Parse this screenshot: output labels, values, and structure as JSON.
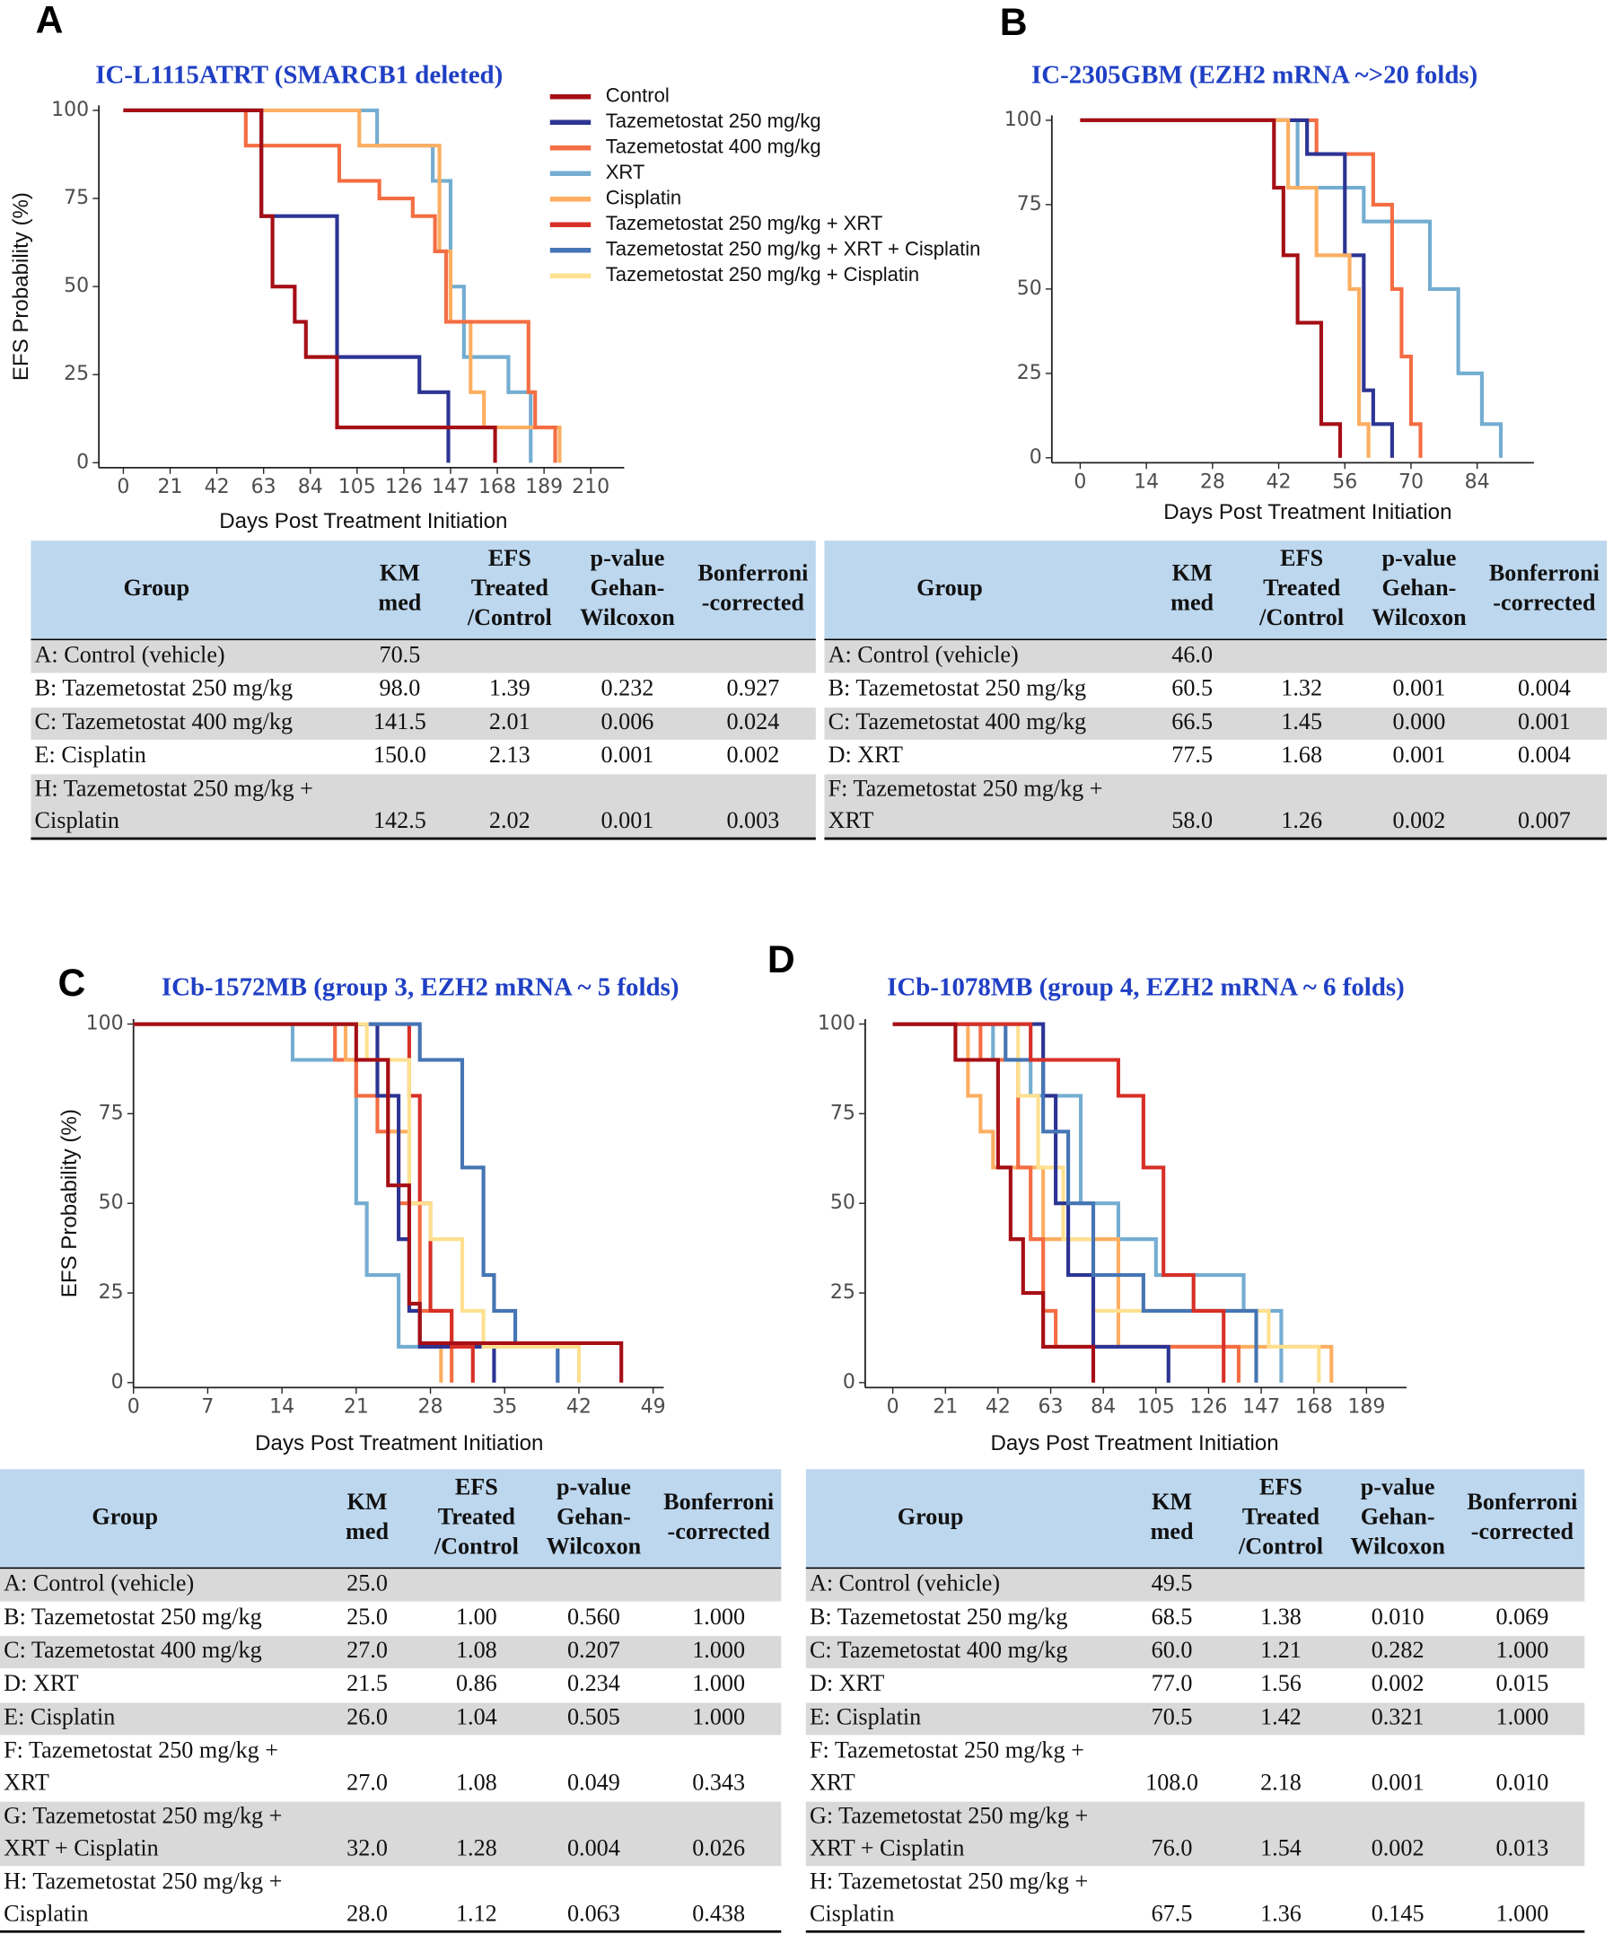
{
  "chart_data": [
    {
      "panel": "A",
      "type": "line",
      "step": true,
      "title": "IC-L1115ATRT (SMARCB1 deleted)",
      "xlabel": "Days Post Treatment Initiation",
      "ylabel": "EFS Probability (%)",
      "xlim": [
        -11,
        225
      ],
      "ylim": [
        0,
        100
      ],
      "xticks": [
        0,
        21,
        42,
        63,
        84,
        105,
        126,
        147,
        168,
        189,
        210
      ],
      "yticks": [
        0,
        25,
        50,
        75,
        100
      ],
      "legend": {
        "position": "right",
        "entries": [
          {
            "name": "Control",
            "color": "#a50f15"
          },
          {
            "name": "Tazemetostat 250 mg/kg",
            "color": "#2c3494"
          },
          {
            "name": "Tazemetostat 400 mg/kg",
            "color": "#f46d43"
          },
          {
            "name": "XRT",
            "color": "#74add1"
          },
          {
            "name": "Cisplatin",
            "color": "#fdae61"
          },
          {
            "name": "Tazemetostat 250 mg/kg + XRT",
            "color": "#d73027"
          },
          {
            "name": "Tazemetostat 250 mg/kg + XRT + Cisplatin",
            "color": "#4575b4"
          },
          {
            "name": "Tazemetostat 250 mg/kg + Cisplatin",
            "color": "#fee090"
          }
        ]
      },
      "series": [
        {
          "color": "#74add1",
          "x": [
            0,
            114,
            139,
            147,
            153,
            173,
            183
          ],
          "values": [
            100,
            90,
            80,
            50,
            30,
            20,
            0
          ]
        },
        {
          "color": "#fdae61",
          "x": [
            0,
            106,
            142,
            147,
            156,
            162,
            196
          ],
          "values": [
            100,
            90,
            60,
            40,
            20,
            10,
            0
          ]
        },
        {
          "color": "#f46d43",
          "x": [
            0,
            55,
            97,
            115,
            130,
            140,
            145,
            182,
            185,
            194
          ],
          "values": [
            100,
            90,
            80,
            75,
            70,
            60,
            40,
            20,
            10,
            0
          ]
        },
        {
          "color": "#2c3494",
          "x": [
            0,
            62,
            96,
            133,
            146
          ],
          "values": [
            100,
            70,
            30,
            20,
            0
          ]
        },
        {
          "color": "#a50f15",
          "x": [
            0,
            62,
            67,
            77,
            82,
            96,
            167
          ],
          "values": [
            100,
            70,
            50,
            40,
            30,
            10,
            0
          ]
        }
      ]
    },
    {
      "panel": "B",
      "type": "line",
      "step": true,
      "title": "IC-2305GBM (EZH2 mRNA ~>20 folds)",
      "xlabel": "Days Post Treatment Initiation",
      "xlim": [
        -6,
        96
      ],
      "ylim": [
        0,
        100
      ],
      "xticks": [
        0,
        14,
        28,
        42,
        56,
        70,
        84
      ],
      "yticks": [
        0,
        25,
        50,
        75,
        100
      ],
      "series": [
        {
          "color": "#74add1",
          "x": [
            0,
            46,
            60,
            74,
            80,
            85,
            89
          ],
          "values": [
            100,
            80,
            70,
            50,
            25,
            10,
            0
          ]
        },
        {
          "color": "#f46d43",
          "x": [
            0,
            50,
            62,
            66,
            68,
            70,
            72
          ],
          "values": [
            100,
            90,
            75,
            50,
            30,
            10,
            0
          ]
        },
        {
          "color": "#2c3494",
          "x": [
            0,
            48,
            56,
            60,
            62,
            66
          ],
          "values": [
            100,
            90,
            60,
            20,
            10,
            0
          ]
        },
        {
          "color": "#fdae61",
          "x": [
            0,
            44,
            50,
            57,
            59,
            61
          ],
          "values": [
            100,
            80,
            60,
            50,
            10,
            0
          ]
        },
        {
          "color": "#a50f15",
          "x": [
            0,
            41,
            43,
            46,
            51,
            55
          ],
          "values": [
            100,
            80,
            60,
            40,
            10,
            0
          ]
        }
      ]
    },
    {
      "panel": "C",
      "type": "line",
      "step": true,
      "title": "ICb-1572MB (group 3, EZH2 mRNA ~ 5 folds)",
      "xlabel": "Days Post Treatment Initiation",
      "ylabel": "EFS Probability (%)",
      "xlim": [
        0,
        50
      ],
      "ylim": [
        0,
        100
      ],
      "xticks": [
        0,
        7,
        14,
        21,
        28,
        35,
        42,
        49
      ],
      "yticks": [
        0,
        25,
        50,
        75,
        100
      ],
      "series": [
        {
          "color": "#74add1",
          "x": [
            0,
            15,
            21,
            22,
            25,
            40
          ],
          "values": [
            100,
            90,
            50,
            30,
            10,
            0
          ]
        },
        {
          "color": "#f46d43",
          "x": [
            0,
            19,
            21,
            23,
            25,
            27,
            30
          ],
          "values": [
            100,
            90,
            80,
            70,
            50,
            20,
            0
          ]
        },
        {
          "color": "#fdae61",
          "x": [
            0,
            20,
            24,
            26,
            27,
            29
          ],
          "values": [
            100,
            90,
            70,
            20,
            10,
            0
          ]
        },
        {
          "color": "#2c3494",
          "x": [
            0,
            23,
            25,
            26,
            27,
            34
          ],
          "values": [
            100,
            80,
            40,
            20,
            10,
            0
          ]
        },
        {
          "color": "#d73027",
          "x": [
            0,
            26,
            27,
            28,
            30,
            32
          ],
          "values": [
            100,
            80,
            50,
            20,
            10,
            0
          ]
        },
        {
          "color": "#4575b4",
          "x": [
            0,
            27,
            31,
            33,
            34,
            36,
            40
          ],
          "values": [
            100,
            90,
            60,
            30,
            20,
            10,
            0
          ]
        },
        {
          "color": "#fee090",
          "x": [
            0,
            22,
            26,
            28,
            31,
            33,
            42
          ],
          "values": [
            100,
            90,
            50,
            40,
            20,
            10,
            0
          ]
        },
        {
          "color": "#a50f15",
          "x": [
            0,
            21,
            24,
            26,
            27,
            46
          ],
          "values": [
            100,
            90,
            55,
            22,
            11,
            0
          ]
        }
      ]
    },
    {
      "panel": "D",
      "type": "line",
      "step": true,
      "title": "ICb-1078MB (group 4, EZH2 mRNA ~ 6 folds)",
      "xlabel": "Days Post Treatment Initiation",
      "xlim": [
        -11,
        205
      ],
      "ylim": [
        0,
        100
      ],
      "xticks": [
        0,
        21,
        42,
        63,
        84,
        105,
        126,
        147,
        168,
        189
      ],
      "yticks": [
        0,
        25,
        50,
        75,
        100
      ],
      "series": [
        {
          "color": "#74add1",
          "x": [
            0,
            40,
            55,
            75,
            90,
            105,
            140,
            155
          ],
          "values": [
            100,
            90,
            80,
            50,
            40,
            30,
            20,
            0
          ]
        },
        {
          "color": "#fdae61",
          "x": [
            0,
            30,
            35,
            40,
            60,
            90,
            175
          ],
          "values": [
            100,
            80,
            70,
            60,
            40,
            10,
            0
          ]
        },
        {
          "color": "#f46d43",
          "x": [
            0,
            35,
            50,
            55,
            60,
            65,
            138
          ],
          "values": [
            100,
            90,
            60,
            40,
            20,
            10,
            0
          ]
        },
        {
          "color": "#fee090",
          "x": [
            0,
            50,
            58,
            68,
            80,
            150,
            170
          ],
          "values": [
            100,
            80,
            60,
            40,
            20,
            10,
            0
          ]
        },
        {
          "color": "#2c3494",
          "x": [
            0,
            60,
            65,
            70,
            80,
            110
          ],
          "values": [
            100,
            80,
            50,
            30,
            10,
            0
          ]
        },
        {
          "color": "#4575b4",
          "x": [
            0,
            45,
            60,
            70,
            80,
            100,
            145
          ],
          "values": [
            100,
            90,
            70,
            50,
            30,
            20,
            0
          ]
        },
        {
          "color": "#d73027",
          "x": [
            0,
            55,
            90,
            100,
            108,
            120,
            132
          ],
          "values": [
            100,
            90,
            80,
            60,
            30,
            20,
            0
          ]
        },
        {
          "color": "#a50f15",
          "x": [
            0,
            25,
            42,
            47,
            52,
            60,
            80
          ],
          "values": [
            100,
            90,
            60,
            40,
            25,
            10,
            0
          ]
        }
      ]
    }
  ],
  "tables": [
    {
      "header": [
        [
          "Group"
        ],
        [
          "KM",
          "med"
        ],
        [
          "EFS",
          "Treated",
          "/Control"
        ],
        [
          "p-value",
          "Gehan-",
          "Wilcoxon"
        ],
        [
          "Bonferroni",
          "-corrected"
        ]
      ],
      "rows": [
        [
          [
            "A: Control (vehicle)"
          ],
          "70.5",
          "",
          "",
          ""
        ],
        [
          [
            "B: Tazemetostat 250 mg/kg"
          ],
          "98.0",
          "1.39",
          "0.232",
          "0.927"
        ],
        [
          [
            "C: Tazemetostat 400 mg/kg"
          ],
          "141.5",
          "2.01",
          "0.006",
          "0.024"
        ],
        [
          [
            "E: Cisplatin"
          ],
          "150.0",
          "2.13",
          "0.001",
          "0.002"
        ],
        [
          [
            "H: Tazemetostat 250 mg/kg +",
            "Cisplatin"
          ],
          "142.5",
          "2.02",
          "0.001",
          "0.003"
        ]
      ]
    },
    {
      "header": [
        [
          "Group"
        ],
        [
          "KM",
          "med"
        ],
        [
          "EFS",
          "Treated",
          "/Control"
        ],
        [
          "p-value",
          "Gehan-",
          "Wilcoxon"
        ],
        [
          "Bonferroni",
          "-corrected"
        ]
      ],
      "rows": [
        [
          [
            "A: Control (vehicle)"
          ],
          "46.0",
          "",
          "",
          ""
        ],
        [
          [
            "B: Tazemetostat 250 mg/kg"
          ],
          "60.5",
          "1.32",
          "0.001",
          "0.004"
        ],
        [
          [
            "C: Tazemetostat 400 mg/kg"
          ],
          "66.5",
          "1.45",
          "0.000",
          "0.001"
        ],
        [
          [
            "D: XRT"
          ],
          "77.5",
          "1.68",
          "0.001",
          "0.004"
        ],
        [
          [
            "F: Tazemetostat 250 mg/kg +",
            "XRT"
          ],
          "58.0",
          "1.26",
          "0.002",
          "0.007"
        ]
      ]
    },
    {
      "header": [
        [
          "Group"
        ],
        [
          "KM",
          "med"
        ],
        [
          "EFS",
          "Treated",
          "/Control"
        ],
        [
          "p-value",
          "Gehan-",
          "Wilcoxon"
        ],
        [
          "Bonferroni",
          "-corrected"
        ]
      ],
      "rows": [
        [
          [
            "A: Control (vehicle)"
          ],
          "25.0",
          "",
          "",
          ""
        ],
        [
          [
            "B: Tazemetostat 250 mg/kg"
          ],
          "25.0",
          "1.00",
          "0.560",
          "1.000"
        ],
        [
          [
            "C: Tazemetostat 400 mg/kg"
          ],
          "27.0",
          "1.08",
          "0.207",
          "1.000"
        ],
        [
          [
            "D: XRT"
          ],
          "21.5",
          "0.86",
          "0.234",
          "1.000"
        ],
        [
          [
            "E: Cisplatin"
          ],
          "26.0",
          "1.04",
          "0.505",
          "1.000"
        ],
        [
          [
            "F: Tazemetostat 250 mg/kg +",
            "XRT"
          ],
          "27.0",
          "1.08",
          "0.049",
          "0.343"
        ],
        [
          [
            "G: Tazemetostat 250 mg/kg +",
            "XRT + Cisplatin"
          ],
          "32.0",
          "1.28",
          "0.004",
          "0.026"
        ],
        [
          [
            "H: Tazemetostat 250 mg/kg +",
            "Cisplatin"
          ],
          "28.0",
          "1.12",
          "0.063",
          "0.438"
        ]
      ]
    },
    {
      "header": [
        [
          "Group"
        ],
        [
          "KM",
          "med"
        ],
        [
          "EFS",
          "Treated",
          "/Control"
        ],
        [
          "p-value",
          "Gehan-",
          "Wilcoxon"
        ],
        [
          "Bonferroni",
          "-corrected"
        ]
      ],
      "rows": [
        [
          [
            "A: Control (vehicle)"
          ],
          "49.5",
          "",
          "",
          ""
        ],
        [
          [
            "B: Tazemetostat 250 mg/kg"
          ],
          "68.5",
          "1.38",
          "0.010",
          "0.069"
        ],
        [
          [
            "C: Tazemetostat 400 mg/kg"
          ],
          "60.0",
          "1.21",
          "0.282",
          "1.000"
        ],
        [
          [
            "D: XRT"
          ],
          "77.0",
          "1.56",
          "0.002",
          "0.015"
        ],
        [
          [
            "E: Cisplatin"
          ],
          "70.5",
          "1.42",
          "0.321",
          "1.000"
        ],
        [
          [
            "F: Tazemetostat 250 mg/kg +",
            "XRT"
          ],
          "108.0",
          "2.18",
          "0.001",
          "0.010"
        ],
        [
          [
            "G: Tazemetostat 250 mg/kg +",
            "XRT + Cisplatin"
          ],
          "76.0",
          "1.54",
          "0.002",
          "0.013"
        ],
        [
          [
            "H: Tazemetostat 250 mg/kg +",
            "Cisplatin"
          ],
          "67.5",
          "1.36",
          "0.145",
          "1.000"
        ]
      ]
    }
  ]
}
